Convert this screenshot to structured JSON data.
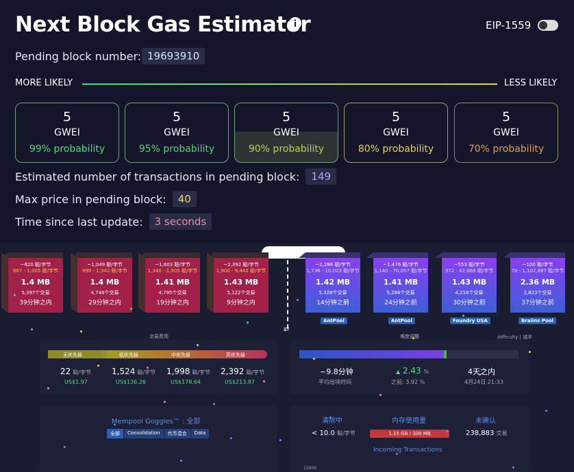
{
  "header": {
    "title": "Next Block Gas Estimator",
    "toggle_label": "EIP-1559"
  },
  "pending_block": {
    "label": "Pending block number:",
    "value": "19693910"
  },
  "likelihood": {
    "left": "MORE LIKELY",
    "right": "LESS LIKELY"
  },
  "cards": [
    {
      "price": "5",
      "unit": "GWEI",
      "probability": "99% probability"
    },
    {
      "price": "5",
      "unit": "GWEI",
      "probability": "95% probability"
    },
    {
      "price": "5",
      "unit": "GWEI",
      "probability": "90% probability"
    },
    {
      "price": "5",
      "unit": "GWEI",
      "probability": "80% probability"
    },
    {
      "price": "5",
      "unit": "GWEI",
      "probability": "70% probability"
    }
  ],
  "stats": [
    {
      "label": "Estimated number of transactions in pending block:",
      "value": "149"
    },
    {
      "label": "Max price in pending block:",
      "value": "40"
    },
    {
      "label": "Time since last update:",
      "value": "3 seconds"
    }
  ],
  "mempool": {
    "pending_blocks": [
      {
        "median": "~820 聪/字节",
        "range": "667 - 1,005 聪/字节",
        "size": "1.4 MB",
        "txs": "5,397个交易",
        "time": "39分钟之内"
      },
      {
        "median": "~1,049 聪/字节",
        "range": "999 - 1,342 聪/字节",
        "size": "1.4 MB",
        "txs": "4,748个交易",
        "time": "29分钟之内"
      },
      {
        "median": "~1,603 聪/字节",
        "range": "1,340 - 1,905 聪/字节",
        "size": "1.41 MB",
        "txs": "4,795个交易",
        "time": "19分钟之内"
      },
      {
        "median": "~2,392 聪/字节",
        "range": "1,900 - 9,443 聪/字节",
        "size": "1.43 MB",
        "txs": "5,122个交易",
        "time": "9分钟之内"
      }
    ],
    "mined_blocks": [
      {
        "median": "~2,286 聪/字节",
        "range": "1,736 - 10,023 聪/字节",
        "size": "1.42 MB",
        "txs": "5,328个交易",
        "time": "14分钟之前",
        "pool": "AntPool"
      },
      {
        "median": "~1,476 聪/字节",
        "range": "1,140 - 70,057 聪/字节",
        "size": "1.41 MB",
        "txs": "5,288个交易",
        "time": "24分钟之前",
        "pool": "AntPool"
      },
      {
        "median": "~553 聪/字节",
        "range": "372 - 42,069 聪/字节",
        "size": "1.43 MB",
        "txs": "4,216个交易",
        "time": "30分钟之前",
        "pool": "Foundry USA"
      },
      {
        "median": "~100 聪/字节",
        "range": "78 - 1,102,887 聪/字节",
        "size": "2.36 MB",
        "txs": "2,823个交易",
        "time": "37分钟之前",
        "pool": "Braiins Pool"
      }
    ],
    "fees": {
      "title": "交易费用",
      "items": [
        {
          "label": "无优先级",
          "value": "22",
          "unit": "聪/字节",
          "usd": "US$1.97"
        },
        {
          "label": "低优先级",
          "value": "1,524",
          "unit": "聪/字节",
          "usd": "US$136.26"
        },
        {
          "label": "中优先级",
          "value": "1,998",
          "unit": "聪/字节",
          "usd": "US$178.64"
        },
        {
          "label": "高优先级",
          "value": "2,392",
          "unit": "聪/字节",
          "usd": "US$213.87"
        }
      ]
    },
    "difficulty": {
      "title": "难度调整",
      "tabs": "difficulty | 减半",
      "block_time": "~9.8分钟",
      "block_time_label": "平均出块时间",
      "change": "2.43",
      "change_unit": "%",
      "previous": "之前:  3.92 %",
      "remaining": "4天之内",
      "date": "4月24日 21:33"
    },
    "goggles": {
      "title": "Mempool Goggles™ : 全部",
      "tags": [
        "全部",
        "Consolidation",
        "代币混合",
        "Data"
      ]
    },
    "memory": {
      "headers": [
        "清除中",
        "内存使用量",
        "未确认"
      ],
      "purging": "< 10.0",
      "purging_unit": "聪/字节",
      "usage": "1.15 GB / 300 MB",
      "unconfirmed": "238,883",
      "unconfirmed_unit": "交易",
      "incoming": "Incoming Transactions",
      "axis_label": "15000"
    }
  }
}
